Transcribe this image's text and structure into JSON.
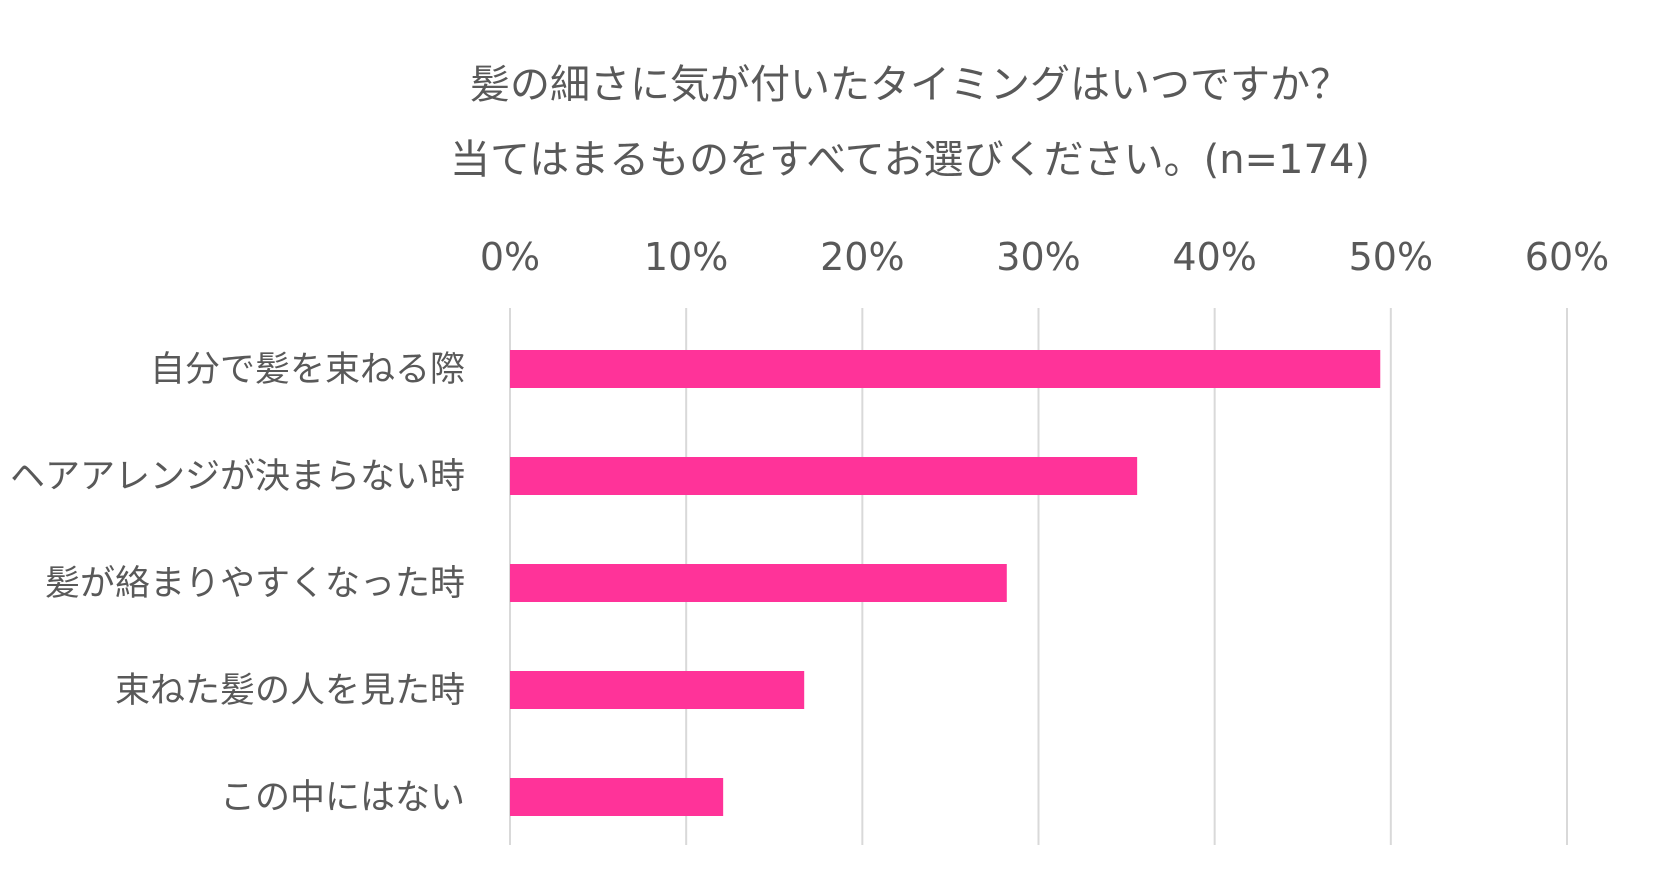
{
  "chart_data": {
    "type": "bar",
    "orientation": "horizontal",
    "title": "髪の細さに気が付いたタイミングはいつですか？",
    "subtitle": "当てはまるものをすべてお選びください。(n=174)",
    "categories": [
      "自分で髪を束ねる際",
      "ヘアアレンジが決まらない時",
      "髪が絡まりやすくなった時",
      "束ねた髪の人を見た時",
      "この中にはない"
    ],
    "values": [
      49.4,
      35.6,
      28.2,
      16.7,
      12.1
    ],
    "xlim": [
      0,
      60
    ],
    "xticks": [
      0,
      10,
      20,
      30,
      40,
      50,
      60
    ],
    "xtick_labels": [
      "0%",
      "10%",
      "20%",
      "30%",
      "40%",
      "50%",
      "60%"
    ],
    "xaxis_position": "top",
    "grid": true,
    "legend": "none",
    "bar_color": "#ff3399"
  }
}
